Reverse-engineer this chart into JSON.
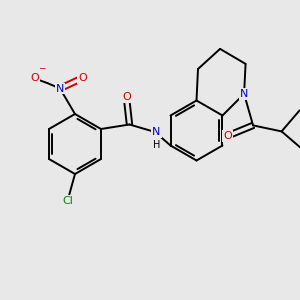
{
  "background_color": "#e8e8e8",
  "black": "#000000",
  "blue": "#0000cc",
  "red": "#cc0000",
  "green": "#008800",
  "lw": 1.4,
  "fs": 7.5,
  "figsize": [
    3.0,
    3.0
  ],
  "dpi": 100,
  "xlim": [
    0,
    10
  ],
  "ylim": [
    0,
    10
  ]
}
